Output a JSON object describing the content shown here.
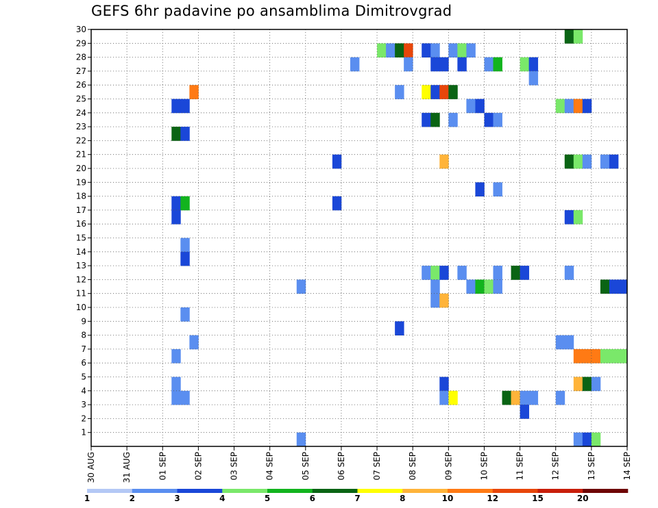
{
  "chart_data": {
    "type": "heatmap",
    "title": "GEFS 6hr padavine po ansamblima Dimitrovgrad",
    "xlabel": "",
    "ylabel": "",
    "x_tick_labels": [
      "30 AUG",
      "31 AUG",
      "01 SEP",
      "02 SEP",
      "03 SEP",
      "04 SEP",
      "05 SEP",
      "06 SEP",
      "07 SEP",
      "08 SEP",
      "09 SEP",
      "10 SEP",
      "11 SEP",
      "12 SEP",
      "13 SEP",
      "14 SEP"
    ],
    "y_tick_labels": [
      "1",
      "2",
      "3",
      "4",
      "5",
      "6",
      "7",
      "8",
      "9",
      "10",
      "11",
      "12",
      "13",
      "14",
      "15",
      "16",
      "17",
      "18",
      "19",
      "20",
      "21",
      "22",
      "23",
      "24",
      "25",
      "26",
      "27",
      "28",
      "29",
      "30"
    ],
    "xlim": [
      0,
      15
    ],
    "ylim": [
      0,
      30
    ],
    "steps_per_day": 4,
    "grid": true,
    "legend": {
      "placement": "bottom",
      "labels": [
        "1",
        "2",
        "3",
        "4",
        "5",
        "6",
        "7",
        "8",
        "10",
        "12",
        "15",
        "20"
      ],
      "colors": [
        "#b4c8f5",
        "#5a8ef0",
        "#1a47d8",
        "#7ae86a",
        "#12b41e",
        "#0a6414",
        "#ffff00",
        "#ffb43a",
        "#ff7a14",
        "#e8460a",
        "#c81e0a",
        "#6e0505"
      ]
    },
    "cells": [
      [
        29,
        13.25,
        5
      ],
      [
        29,
        13.5,
        3
      ],
      [
        28,
        8.0,
        3
      ],
      [
        28,
        8.25,
        1
      ],
      [
        28,
        8.5,
        5
      ],
      [
        28,
        8.75,
        9
      ],
      [
        28,
        9.25,
        2
      ],
      [
        28,
        9.5,
        1
      ],
      [
        28,
        10.0,
        1
      ],
      [
        28,
        10.25,
        3
      ],
      [
        28,
        10.5,
        1
      ],
      [
        27,
        7.25,
        1
      ],
      [
        27,
        8.75,
        1
      ],
      [
        27,
        9.5,
        2
      ],
      [
        27,
        9.75,
        2
      ],
      [
        27,
        10.25,
        2
      ],
      [
        27,
        11.0,
        1
      ],
      [
        27,
        11.25,
        4
      ],
      [
        27,
        12.0,
        3
      ],
      [
        27,
        12.25,
        2
      ],
      [
        26,
        12.25,
        1
      ],
      [
        25,
        2.75,
        8
      ],
      [
        25,
        8.5,
        1
      ],
      [
        25,
        9.25,
        6
      ],
      [
        25,
        9.5,
        2
      ],
      [
        25,
        9.75,
        9
      ],
      [
        25,
        10.0,
        5
      ],
      [
        24,
        2.25,
        2
      ],
      [
        24,
        2.5,
        2
      ],
      [
        24,
        10.5,
        1
      ],
      [
        24,
        10.75,
        2
      ],
      [
        24,
        13.0,
        3
      ],
      [
        24,
        13.25,
        1
      ],
      [
        24,
        13.5,
        8
      ],
      [
        24,
        13.75,
        2
      ],
      [
        23,
        9.25,
        2
      ],
      [
        23,
        9.5,
        5
      ],
      [
        23,
        10.0,
        1
      ],
      [
        23,
        11.0,
        2
      ],
      [
        23,
        11.25,
        1
      ],
      [
        22,
        2.25,
        5
      ],
      [
        22,
        2.5,
        2
      ],
      [
        20,
        6.75,
        2
      ],
      [
        20,
        9.75,
        7
      ],
      [
        20,
        13.25,
        5
      ],
      [
        20,
        13.5,
        3
      ],
      [
        20,
        13.75,
        1
      ],
      [
        20,
        14.25,
        1
      ],
      [
        20,
        14.5,
        2
      ],
      [
        18,
        10.75,
        2
      ],
      [
        18,
        11.25,
        1
      ],
      [
        17,
        2.25,
        2
      ],
      [
        17,
        2.5,
        4
      ],
      [
        17,
        6.75,
        2
      ],
      [
        16,
        2.25,
        2
      ],
      [
        16,
        13.25,
        2
      ],
      [
        16,
        13.5,
        3
      ],
      [
        14,
        2.5,
        1
      ],
      [
        13,
        2.5,
        2
      ],
      [
        12,
        9.25,
        1
      ],
      [
        12,
        9.5,
        3
      ],
      [
        12,
        9.75,
        2
      ],
      [
        12,
        10.25,
        1
      ],
      [
        12,
        11.25,
        1
      ],
      [
        12,
        11.75,
        5
      ],
      [
        12,
        12.0,
        2
      ],
      [
        12,
        13.25,
        1
      ],
      [
        11,
        5.75,
        1
      ],
      [
        11,
        9.5,
        1
      ],
      [
        11,
        10.5,
        1
      ],
      [
        11,
        10.75,
        4
      ],
      [
        11,
        11.0,
        3
      ],
      [
        11,
        11.25,
        1
      ],
      [
        11,
        14.25,
        5
      ],
      [
        11,
        14.5,
        2
      ],
      [
        11,
        14.75,
        2
      ],
      [
        10,
        9.5,
        1
      ],
      [
        10,
        9.75,
        7
      ],
      [
        9,
        2.5,
        1
      ],
      [
        8,
        8.5,
        2
      ],
      [
        7,
        2.75,
        1
      ],
      [
        7,
        13.0,
        1
      ],
      [
        7,
        13.25,
        1
      ],
      [
        6,
        2.25,
        1
      ],
      [
        6,
        13.5,
        8
      ],
      [
        6,
        13.75,
        8
      ],
      [
        6,
        14.0,
        8
      ],
      [
        6,
        14.25,
        3
      ],
      [
        6,
        14.5,
        3
      ],
      [
        6,
        14.75,
        3
      ],
      [
        4,
        2.25,
        1
      ],
      [
        4,
        9.75,
        2
      ],
      [
        4,
        13.5,
        7
      ],
      [
        4,
        13.75,
        5
      ],
      [
        4,
        14.0,
        1
      ],
      [
        3,
        2.25,
        1
      ],
      [
        3,
        2.5,
        1
      ],
      [
        3,
        9.75,
        1
      ],
      [
        3,
        10.0,
        6
      ],
      [
        3,
        11.5,
        5
      ],
      [
        3,
        11.75,
        7
      ],
      [
        3,
        12.0,
        1
      ],
      [
        3,
        12.25,
        1
      ],
      [
        3,
        13.0,
        1
      ],
      [
        2,
        12.0,
        2
      ],
      [
        0,
        5.75,
        1
      ],
      [
        0,
        13.5,
        1
      ],
      [
        0,
        13.75,
        2
      ],
      [
        0,
        14.0,
        3
      ]
    ]
  }
}
